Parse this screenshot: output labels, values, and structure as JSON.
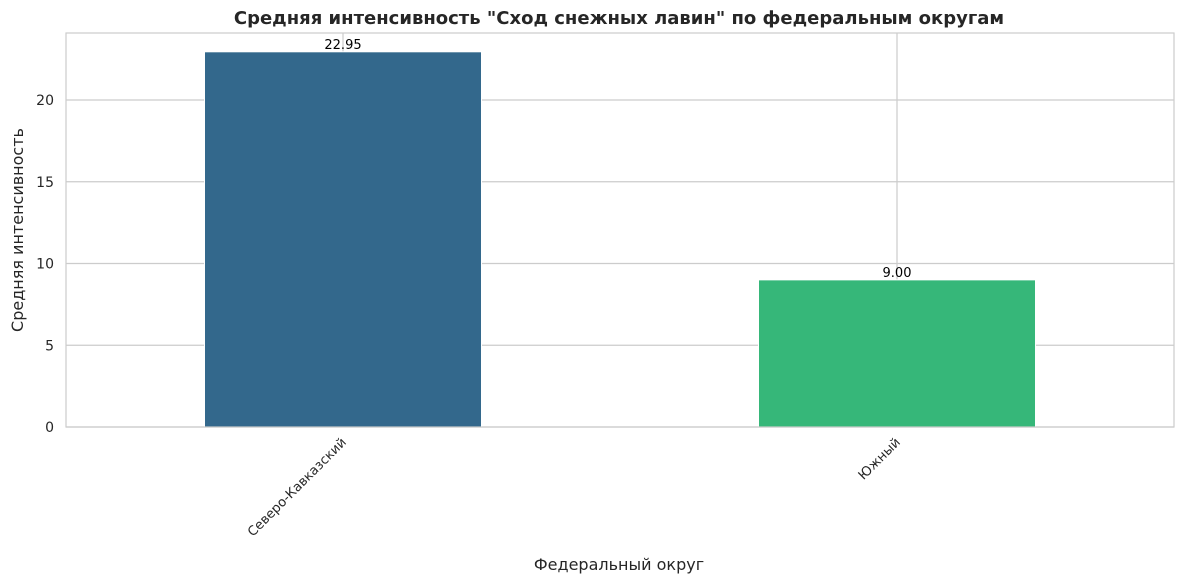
{
  "chart_data": {
    "type": "bar",
    "title": "Средняя интенсивность \"Сход снежных лавин\" по федеральным округам",
    "xlabel": "Федеральный округ",
    "ylabel": "Средняя интенсивность",
    "categories": [
      "Северо-Кавказский",
      "Южный"
    ],
    "values": [
      22.95,
      9.0
    ],
    "value_labels": [
      "22.95",
      "9.00"
    ],
    "colors": [
      "#33688c",
      "#36b779"
    ],
    "ylim": [
      0,
      24.1
    ],
    "yticks": [
      0,
      5,
      10,
      15,
      20
    ],
    "ytick_labels": [
      "0",
      "5",
      "10",
      "15",
      "20"
    ],
    "grid": true,
    "legend": "none"
  }
}
